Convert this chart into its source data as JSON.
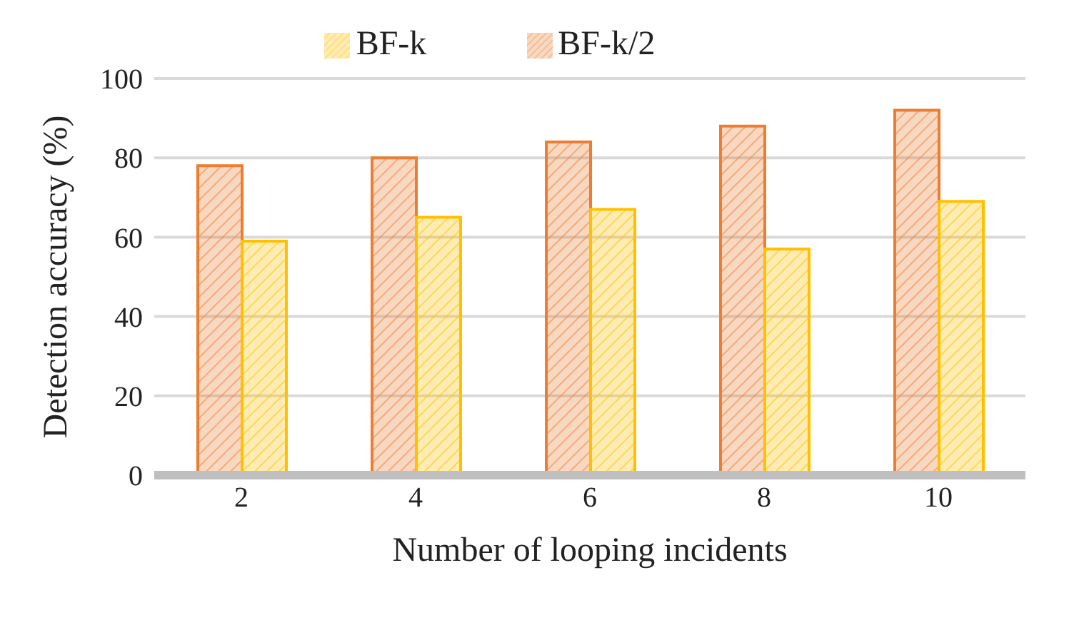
{
  "chart_data": {
    "type": "bar",
    "xlabel": "Number of looping incidents",
    "ylabel": "Detection accuracy (%)",
    "categories": [
      "2",
      "4",
      "6",
      "8",
      "10"
    ],
    "series": [
      {
        "name": "BF-k/2",
        "color": "#ed7d31",
        "values": [
          78,
          80,
          84,
          88,
          92
        ]
      },
      {
        "name": "BF-k",
        "color": "#ffc000",
        "values": [
          59,
          65,
          67,
          57,
          69
        ]
      }
    ],
    "ylim": [
      0,
      100
    ],
    "yticks": [
      0,
      20,
      40,
      60,
      80,
      100
    ],
    "grid": "y",
    "legend": "top"
  }
}
